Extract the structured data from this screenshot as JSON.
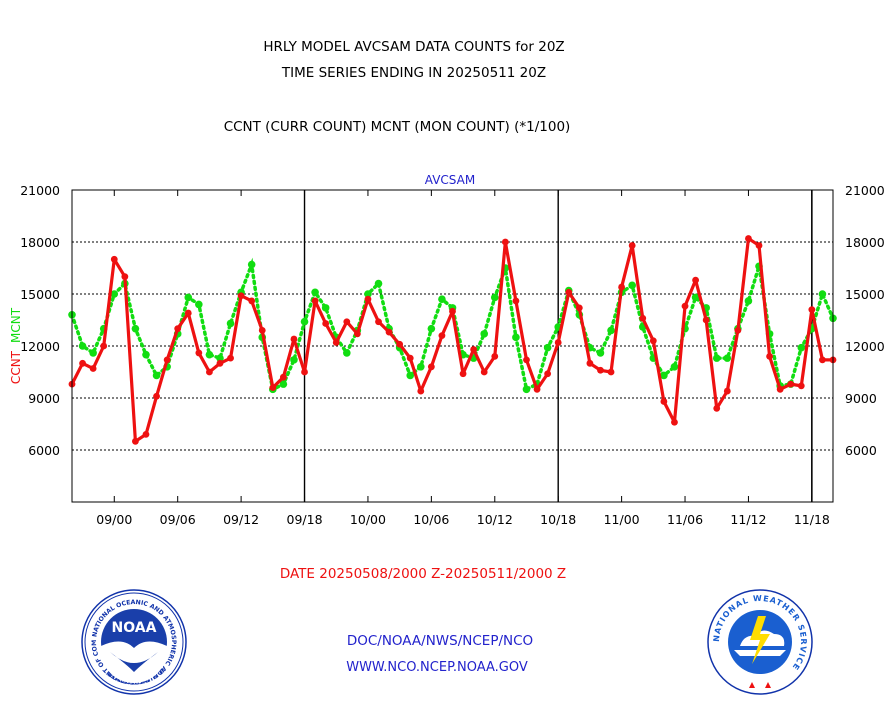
{
  "header": {
    "title_line1": "HRLY MODEL AVCSAM DATA COUNTS for 20Z",
    "title_line2": "TIME SERIES ENDING IN 20250511 20Z",
    "subtitle": "CCNT (CURR COUNT) MCNT (MON COUNT) (*1/100)"
  },
  "footer": {
    "date_range": "DATE 20250508/2000 Z-20250511/2000 Z",
    "org_line": "DOC/NOAA/NWS/NCEP/NCO",
    "url_line": "WWW.NCO.NCEP.NOAA.GOV"
  },
  "logos": {
    "noaa_text": "NOAA",
    "noaa_ring_text": "NATIONAL OCEANIC AND ATMOSPHERIC ADMINISTRATION",
    "noaa_ring_bottom": "U.S. DEPARTMENT OF COMMERCE",
    "nws_ring_text": "NATIONAL WEATHER SERVICE"
  },
  "colors": {
    "ccnt": "#ee1111",
    "mcnt": "#11dd11",
    "title": "#000000",
    "footer_red": "#ee1111",
    "footer_blue": "#2222cc",
    "noaa_blue": "#1133aa",
    "nws_blue": "#1a5fd0"
  },
  "chart_data": {
    "type": "line",
    "title": "AVCSAM",
    "ylabel_ccnt": "CCNT",
    "ylabel_mcnt": "MCNT",
    "ylim": [
      3000,
      21000
    ],
    "yticks": [
      6000,
      9000,
      12000,
      15000,
      18000,
      21000
    ],
    "ytick_labels": [
      "6000",
      "9000",
      "12000",
      "15000",
      "18000",
      "21000"
    ],
    "grid": true,
    "x": [
      "08/20",
      "08/21",
      "08/22",
      "08/23",
      "09/00",
      "09/01",
      "09/02",
      "09/03",
      "09/04",
      "09/05",
      "09/06",
      "09/07",
      "09/08",
      "09/09",
      "09/10",
      "09/11",
      "09/12",
      "09/13",
      "09/14",
      "09/15",
      "09/16",
      "09/17",
      "09/18",
      "09/19",
      "09/20",
      "09/21",
      "09/22",
      "09/23",
      "10/00",
      "10/01",
      "10/02",
      "10/03",
      "10/04",
      "10/05",
      "10/06",
      "10/07",
      "10/08",
      "10/09",
      "10/10",
      "10/11",
      "10/12",
      "10/13",
      "10/14",
      "10/15",
      "10/16",
      "10/17",
      "10/18",
      "10/19",
      "10/20",
      "10/21",
      "10/22",
      "10/23",
      "11/00",
      "11/01",
      "11/02",
      "11/03",
      "11/04",
      "11/05",
      "11/06",
      "11/07",
      "11/08",
      "11/09",
      "11/10",
      "11/11",
      "11/12",
      "11/13",
      "11/14",
      "11/15",
      "11/16",
      "11/17",
      "11/18",
      "11/19",
      "11/20"
    ],
    "xtick_labels": [
      "09/00",
      "09/06",
      "09/12",
      "09/18",
      "10/00",
      "10/06",
      "10/12",
      "10/18",
      "11/00",
      "11/06",
      "11/12",
      "11/18"
    ],
    "day_separators": [
      "09/18",
      "10/18",
      "11/18"
    ],
    "series": [
      {
        "name": "CCNT",
        "values": [
          9800,
          11000,
          10700,
          12000,
          17000,
          16000,
          6500,
          6900,
          9100,
          11200,
          13000,
          13900,
          11600,
          10500,
          11000,
          11300,
          14900,
          14600,
          12900,
          9600,
          10200,
          12400,
          10500,
          14600,
          13300,
          12200,
          13400,
          12700,
          14700,
          13400,
          12800,
          12100,
          11300,
          9400,
          10800,
          12600,
          14000,
          10400,
          11800,
          10500,
          11400,
          18000,
          14600,
          11200,
          9500,
          10400,
          12200,
          15100,
          14200,
          11000,
          10600,
          10500,
          15400,
          17800,
          13600,
          12300,
          8800,
          7600,
          14300,
          15800,
          13500,
          8400,
          9400,
          12900,
          18200,
          17800,
          11400,
          9500,
          9800,
          9700,
          14100,
          11200,
          11200
        ]
      },
      {
        "name": "MCNT",
        "values": [
          13800,
          12000,
          11600,
          13000,
          15000,
          15600,
          13000,
          11500,
          10300,
          10800,
          12700,
          14800,
          14400,
          11500,
          11300,
          13300,
          15100,
          16700,
          12500,
          9500,
          9800,
          11200,
          13400,
          15100,
          14200,
          12500,
          11600,
          12900,
          15000,
          15600,
          13000,
          11900,
          10300,
          10800,
          13000,
          14700,
          14200,
          11500,
          11300,
          12700,
          14800,
          16500,
          12500,
          9500,
          9800,
          11900,
          13100,
          15200,
          13800,
          11900,
          11600,
          12900,
          15100,
          15500,
          13100,
          11300,
          10300,
          10800,
          13000,
          14800,
          14200,
          11300,
          11300,
          13000,
          14600,
          16600,
          12700,
          9700,
          9800,
          11900,
          13000,
          15000,
          13600
        ]
      }
    ]
  }
}
